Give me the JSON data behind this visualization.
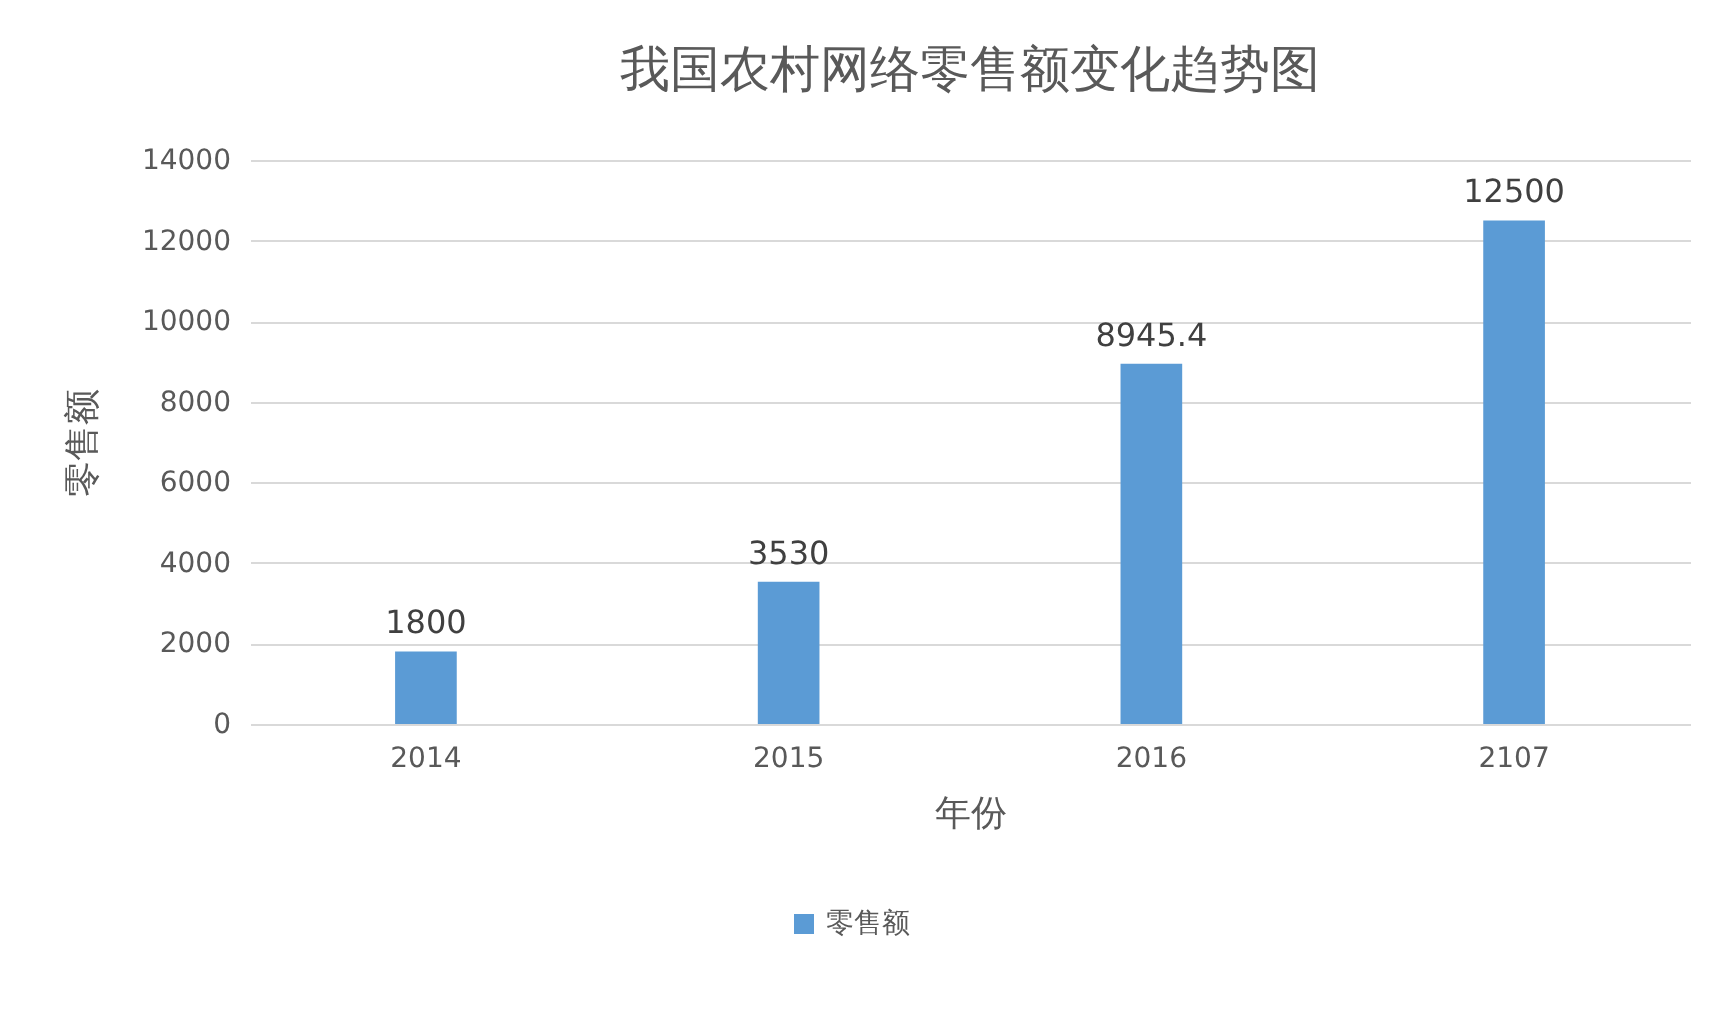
{
  "chart_data": {
    "type": "bar",
    "title": "我国农村网络零售额变化趋势图",
    "xlabel": "年份",
    "ylabel": "零售额",
    "categories": [
      "2014",
      "2015",
      "2016",
      "2107"
    ],
    "series": [
      {
        "name": "零售额",
        "color": "#5b9bd5",
        "values": [
          1800,
          3530,
          8945.4,
          12500
        ]
      }
    ],
    "ylim": [
      0,
      14000
    ],
    "yticks": [
      0,
      2000,
      4000,
      6000,
      8000,
      10000,
      12000,
      14000
    ],
    "grid": "y",
    "legend": "bottom",
    "data_labels": true
  }
}
